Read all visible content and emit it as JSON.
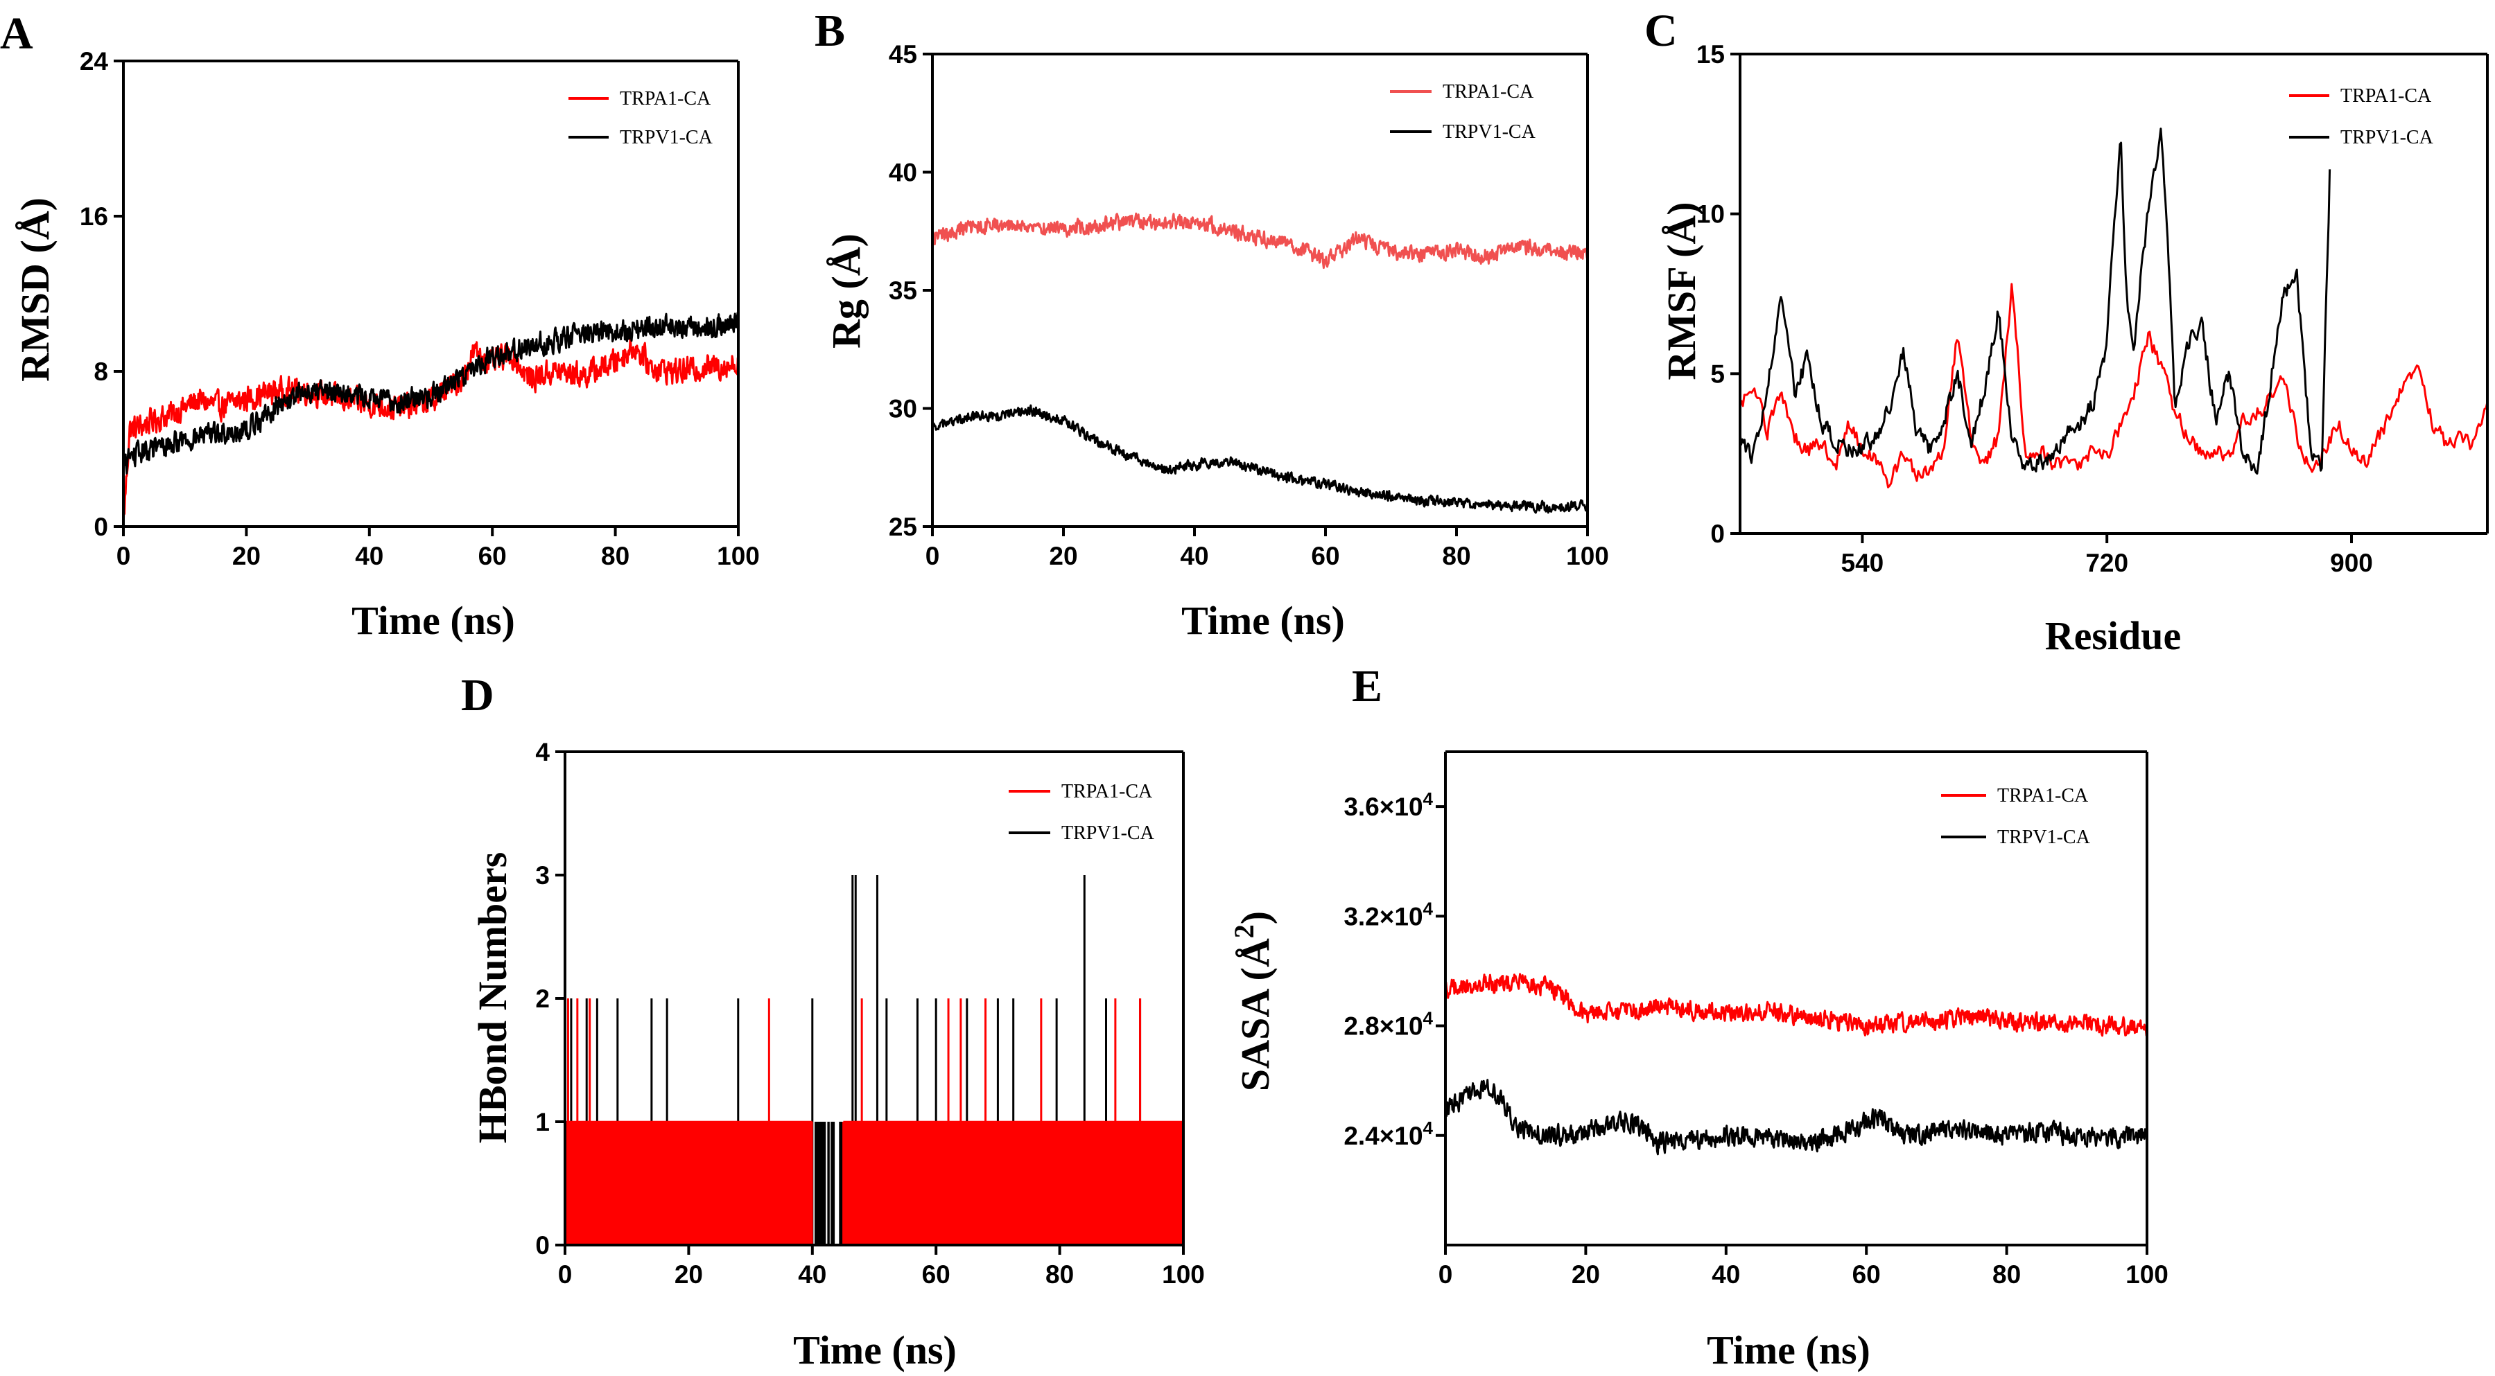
{
  "figure": {
    "colors": {
      "TRPA1-CA": "#ff0000",
      "TRPV1-CA": "#000000",
      "B-TRPA1-CA": "#f05050"
    }
  },
  "chart_data": [
    {
      "id": "A",
      "panel_label": "A",
      "type": "line",
      "xlabel": "Time (ns)",
      "ylabel": "RMSD (Å)",
      "xlim": [
        0,
        100
      ],
      "ylim": [
        0,
        24
      ],
      "xticks": [
        0,
        20,
        40,
        60,
        80,
        100
      ],
      "yticks": [
        0,
        8,
        16,
        24
      ],
      "legend": [
        "TRPA1-CA",
        "TRPV1-CA"
      ],
      "legend_position": "top-right",
      "series": [
        {
          "name": "TRPA1-CA",
          "color": "#ff0000",
          "noise": 0.9,
          "x": [
            0,
            1,
            3,
            5,
            8,
            12,
            16,
            20,
            25,
            30,
            35,
            40,
            45,
            50,
            55,
            57,
            60,
            63,
            66,
            70,
            75,
            80,
            83,
            86,
            90,
            95,
            100
          ],
          "y": [
            0,
            5.0,
            5.2,
            5.5,
            5.8,
            6.5,
            6.2,
            6.6,
            7.0,
            7.0,
            6.6,
            6.3,
            6.1,
            6.5,
            7.6,
            9.0,
            8.4,
            8.9,
            7.6,
            8.0,
            7.8,
            8.5,
            9.3,
            8.2,
            8.0,
            8.2,
            8.4
          ]
        },
        {
          "name": "TRPV1-CA",
          "color": "#000000",
          "noise": 0.8,
          "x": [
            0,
            1,
            5,
            10,
            15,
            20,
            25,
            30,
            35,
            40,
            45,
            50,
            55,
            60,
            65,
            70,
            75,
            80,
            85,
            90,
            95,
            100
          ],
          "y": [
            3.0,
            3.6,
            4.0,
            4.5,
            4.8,
            5.0,
            6.2,
            7.0,
            7.0,
            6.6,
            6.4,
            6.8,
            7.8,
            8.8,
            9.2,
            9.6,
            10.0,
            10.0,
            10.2,
            10.3,
            10.3,
            10.5
          ]
        }
      ]
    },
    {
      "id": "B",
      "panel_label": "B",
      "type": "line",
      "xlabel": "Time (ns)",
      "ylabel": "Rg (Å)",
      "xlim": [
        0,
        100
      ],
      "ylim": [
        25,
        45
      ],
      "xticks": [
        0,
        20,
        40,
        60,
        80,
        100
      ],
      "yticks": [
        25,
        30,
        35,
        40,
        45
      ],
      "legend": [
        "TRPA1-CA",
        "TRPV1-CA"
      ],
      "legend_position": "top-right",
      "series": [
        {
          "name": "TRPA1-CA",
          "color": "#f05050",
          "noise": 0.45,
          "x": [
            0,
            5,
            10,
            20,
            30,
            40,
            50,
            55,
            60,
            65,
            70,
            75,
            80,
            85,
            90,
            95,
            100
          ],
          "y": [
            37.2,
            37.6,
            37.8,
            37.6,
            37.9,
            37.9,
            37.2,
            37.0,
            36.2,
            37.2,
            36.6,
            36.5,
            36.7,
            36.4,
            36.9,
            36.6,
            36.7
          ]
        },
        {
          "name": "TRPV1-CA",
          "color": "#000000",
          "noise": 0.3,
          "x": [
            0,
            5,
            10,
            15,
            20,
            25,
            30,
            35,
            40,
            45,
            50,
            55,
            60,
            65,
            70,
            75,
            80,
            85,
            90,
            95,
            100
          ],
          "y": [
            29.2,
            29.6,
            29.7,
            29.9,
            29.5,
            28.6,
            28.0,
            27.4,
            27.6,
            27.8,
            27.4,
            27.0,
            26.8,
            26.5,
            26.3,
            26.1,
            26.0,
            25.9,
            25.9,
            25.8,
            25.9
          ]
        }
      ]
    },
    {
      "id": "C",
      "panel_label": "C",
      "type": "line",
      "xlabel": "Residue",
      "ylabel": "RMSF (Å)",
      "xlim": [
        450,
        1000
      ],
      "ylim": [
        0,
        15
      ],
      "xticks": [
        540,
        720,
        900
      ],
      "yticks": [
        0,
        5,
        10,
        15
      ],
      "legend": [
        "TRPA1-CA",
        "TRPV1-CA"
      ],
      "legend_position": "top-right",
      "series": [
        {
          "name": "TRPA1-CA",
          "color": "#ff0000",
          "noise": 0.35,
          "x": [
            450,
            460,
            470,
            480,
            490,
            500,
            510,
            520,
            530,
            540,
            550,
            560,
            570,
            580,
            590,
            600,
            610,
            620,
            630,
            640,
            650,
            660,
            670,
            680,
            700,
            710,
            720,
            730,
            740,
            750,
            760,
            770,
            780,
            790,
            800,
            810,
            820,
            830,
            840,
            850,
            860,
            870,
            880,
            890,
            900,
            910,
            920,
            930,
            940,
            950,
            960,
            970,
            980,
            990,
            1000
          ],
          "y": [
            4.0,
            4.8,
            3.2,
            4.5,
            3.0,
            2.6,
            2.9,
            2.0,
            3.5,
            2.6,
            2.3,
            1.6,
            2.4,
            1.8,
            2.0,
            2.6,
            6.3,
            3.0,
            2.2,
            3.0,
            7.8,
            2.6,
            2.6,
            2.2,
            2.2,
            2.6,
            2.4,
            3.4,
            4.4,
            6.2,
            5.2,
            3.8,
            3.0,
            2.5,
            2.6,
            2.3,
            3.5,
            3.7,
            4.2,
            5.0,
            3.0,
            2.0,
            2.5,
            3.5,
            2.5,
            2.2,
            3.0,
            3.8,
            4.8,
            5.0,
            3.4,
            2.8,
            3.0,
            2.8,
            4.0
          ]
        },
        {
          "name": "TRPV1-CA",
          "color": "#000000",
          "noise": 0.4,
          "x": [
            450,
            460,
            470,
            480,
            490,
            500,
            510,
            520,
            530,
            540,
            550,
            560,
            570,
            580,
            590,
            600,
            610,
            620,
            630,
            640,
            650,
            660,
            670,
            680,
            690,
            700,
            710,
            720,
            730,
            735,
            740,
            750,
            760,
            765,
            770,
            780,
            790,
            800,
            810,
            820,
            830,
            840,
            850,
            860,
            870,
            878,
            884
          ],
          "y": [
            3.0,
            2.4,
            4.5,
            7.6,
            4.5,
            5.5,
            3.5,
            2.8,
            2.6,
            2.8,
            3.0,
            4.0,
            5.6,
            3.2,
            2.6,
            3.5,
            5.0,
            2.8,
            4.5,
            7.0,
            3.0,
            2.0,
            2.2,
            2.4,
            3.2,
            3.5,
            4.0,
            6.0,
            12.6,
            7.0,
            6.0,
            10.0,
            12.7,
            9.0,
            4.0,
            6.0,
            6.5,
            3.5,
            5.0,
            2.5,
            1.8,
            4.5,
            7.5,
            8.0,
            2.6,
            2.0,
            11.2
          ]
        }
      ]
    },
    {
      "id": "D",
      "panel_label": "D",
      "type": "line",
      "xlabel": "Time (ns)",
      "ylabel": "HBond Numbers",
      "xlim": [
        0,
        100
      ],
      "ylim": [
        0,
        4
      ],
      "xticks": [
        0,
        20,
        40,
        60,
        80,
        100
      ],
      "yticks": [
        0,
        1,
        2,
        3,
        4
      ],
      "legend": [
        "TRPA1-CA",
        "TRPV1-CA"
      ],
      "legend_position": "top-right",
      "series": [
        {
          "name": "TRPV1-CA",
          "color": "#000000",
          "x": [
            1,
            3.5,
            5.2,
            8.5,
            14,
            16.5,
            28,
            29.5,
            40,
            46.5,
            47,
            50.5,
            52,
            57,
            60,
            65,
            70,
            72.5,
            79.5,
            84,
            87.5,
            93
          ],
          "y": [
            2,
            2,
            2,
            2,
            2,
            2,
            2,
            1,
            2,
            3,
            3,
            3,
            2,
            2,
            2,
            2,
            2,
            2,
            2,
            3,
            2,
            2
          ]
        },
        {
          "name": "TRPA1-CA",
          "color": "#ff0000",
          "x": [
            0.5,
            2,
            4,
            33,
            48,
            62,
            64,
            68,
            77,
            89,
            93
          ],
          "y": [
            2,
            2,
            2,
            2,
            2,
            2,
            2,
            2,
            2,
            2,
            2
          ]
        }
      ]
    },
    {
      "id": "E",
      "panel_label": "E",
      "type": "line",
      "xlabel": "Time (ns)",
      "ylabel": "SASA (Å²)",
      "xlim": [
        0,
        100
      ],
      "ylim": [
        20000,
        38000
      ],
      "xticks": [
        0,
        20,
        40,
        60,
        80,
        100
      ],
      "yticks": [
        24000,
        28000,
        32000,
        36000
      ],
      "ytick_labels": [
        "2.4×10",
        "2.8×10",
        "3.2×10",
        "3.6×10"
      ],
      "ytick_exponent": "4",
      "legend": [
        "TRPA1-CA",
        "TRPV1-CA"
      ],
      "legend_position": "top-right",
      "series": [
        {
          "name": "TRPA1-CA",
          "color": "#ff0000",
          "noise": 450,
          "x": [
            0,
            5,
            10,
            15,
            18,
            20,
            25,
            30,
            35,
            40,
            45,
            50,
            55,
            60,
            65,
            70,
            75,
            80,
            85,
            90,
            95,
            100
          ],
          "y": [
            29300,
            29500,
            29600,
            29400,
            28800,
            28400,
            28500,
            28700,
            28600,
            28500,
            28500,
            28400,
            28200,
            28000,
            28100,
            28200,
            28300,
            28200,
            28100,
            28100,
            28000,
            27900
          ]
        },
        {
          "name": "TRPV1-CA",
          "color": "#000000",
          "noise": 500,
          "x": [
            0,
            3,
            5,
            8,
            10,
            15,
            20,
            25,
            28,
            30,
            35,
            40,
            45,
            50,
            55,
            60,
            62,
            65,
            70,
            75,
            80,
            85,
            90,
            95,
            100
          ],
          "y": [
            25000,
            25400,
            25800,
            25400,
            24300,
            24000,
            24100,
            24600,
            24300,
            23700,
            23800,
            24000,
            23900,
            23800,
            23900,
            24500,
            24700,
            24000,
            24100,
            24200,
            24000,
            24100,
            24000,
            23900,
            24000
          ]
        }
      ]
    }
  ]
}
